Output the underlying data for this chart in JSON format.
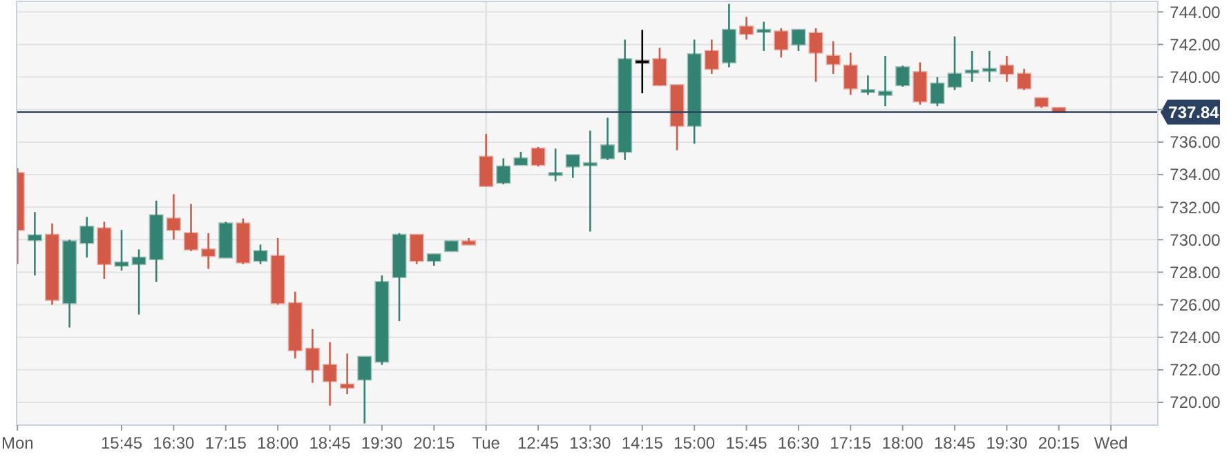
{
  "chart_data": {
    "type": "candlestick",
    "categories": [
      "Mon",
      null,
      null,
      null,
      null,
      null,
      "15:45",
      null,
      null,
      "16:30",
      null,
      null,
      "17:15",
      null,
      null,
      "18:00",
      null,
      null,
      "18:45",
      null,
      null,
      "19:30",
      null,
      null,
      "20:15",
      null,
      null,
      "Tue",
      null,
      null,
      "12:45",
      null,
      null,
      "13:30",
      null,
      null,
      "14:15",
      null,
      null,
      "15:00",
      null,
      null,
      "15:45",
      null,
      null,
      "16:30",
      null,
      null,
      "17:15",
      null,
      null,
      "18:00",
      null,
      null,
      "18:45",
      null,
      null,
      "19:30",
      null,
      null,
      "20:15",
      null,
      null,
      "Wed"
    ],
    "ohlc": [
      [
        734.1,
        734.4,
        728.5,
        730.6
      ],
      [
        729.97,
        731.7,
        727.8,
        730.27
      ],
      [
        730.3,
        731.0,
        726.0,
        726.3
      ],
      [
        726.1,
        730.0,
        724.6,
        729.9
      ],
      [
        729.8,
        731.4,
        728.9,
        730.8
      ],
      [
        730.7,
        731.1,
        727.6,
        728.5
      ],
      [
        728.4,
        730.6,
        728.1,
        728.6
      ],
      [
        728.5,
        729.4,
        725.4,
        728.9
      ],
      [
        728.8,
        732.4,
        727.4,
        731.5
      ],
      [
        731.3,
        732.8,
        730.0,
        730.6
      ],
      [
        730.4,
        732.2,
        729.3,
        729.4
      ],
      [
        729.4,
        730.4,
        728.2,
        729.0
      ],
      [
        728.9,
        731.1,
        728.9,
        731.0
      ],
      [
        731.0,
        731.3,
        728.5,
        728.6
      ],
      [
        728.7,
        729.7,
        728.5,
        729.3
      ],
      [
        729.0,
        730.1,
        726.0,
        726.1
      ],
      [
        726.1,
        726.8,
        722.7,
        723.2
      ],
      [
        723.3,
        724.5,
        721.2,
        722.0
      ],
      [
        722.3,
        723.7,
        719.8,
        721.3
      ],
      [
        721.1,
        723.0,
        720.5,
        720.9
      ],
      [
        721.4,
        722.8,
        718.7,
        722.8
      ],
      [
        722.5,
        727.8,
        722.3,
        727.4
      ],
      [
        727.7,
        730.4,
        725.0,
        730.3
      ],
      [
        730.3,
        730.3,
        728.5,
        728.7
      ],
      [
        728.7,
        729.1,
        728.4,
        729.1
      ],
      [
        729.3,
        729.9,
        729.3,
        729.9
      ],
      [
        729.9,
        730.1,
        729.7,
        729.7
      ],
      [
        735.1,
        736.5,
        733.3,
        733.3
      ],
      [
        733.5,
        735.0,
        733.4,
        734.5
      ],
      [
        734.6,
        735.4,
        734.6,
        735.0
      ],
      [
        735.6,
        735.7,
        734.5,
        734.6
      ],
      [
        734.0,
        735.6,
        733.6,
        734.1
      ],
      [
        734.5,
        735.2,
        733.8,
        735.2
      ],
      [
        734.6,
        736.7,
        730.5,
        734.7
      ],
      [
        735.0,
        737.5,
        734.9,
        735.8
      ],
      [
        735.4,
        742.3,
        734.9,
        741.1
      ],
      [
        741.0,
        742.9,
        739.0,
        741.0
      ],
      [
        741.1,
        741.8,
        739.5,
        739.5
      ],
      [
        739.5,
        739.5,
        735.5,
        737.0
      ],
      [
        737.0,
        742.3,
        735.9,
        741.4
      ],
      [
        741.6,
        742.3,
        740.2,
        740.5
      ],
      [
        740.9,
        744.5,
        740.6,
        742.9
      ],
      [
        743.1,
        743.7,
        742.3,
        742.65
      ],
      [
        742.8,
        743.4,
        741.6,
        742.9
      ],
      [
        742.8,
        743.0,
        741.2,
        741.7
      ],
      [
        742.0,
        742.9,
        741.6,
        742.9
      ],
      [
        742.7,
        743.0,
        739.7,
        741.5
      ],
      [
        741.3,
        742.2,
        740.2,
        740.8
      ],
      [
        740.7,
        741.5,
        738.9,
        739.3
      ],
      [
        739.1,
        740.1,
        738.9,
        739.2
      ],
      [
        738.9,
        741.3,
        738.2,
        739.1
      ],
      [
        739.5,
        740.7,
        739.4,
        740.6
      ],
      [
        740.3,
        740.9,
        738.3,
        738.5
      ],
      [
        738.4,
        740.0,
        738.2,
        739.6
      ],
      [
        739.4,
        742.5,
        739.2,
        740.2
      ],
      [
        740.3,
        741.6,
        739.7,
        740.4
      ],
      [
        740.4,
        741.6,
        739.7,
        740.5
      ],
      [
        740.7,
        741.3,
        739.7,
        740.2
      ],
      [
        740.2,
        740.5,
        739.2,
        739.3
      ],
      [
        738.7,
        738.7,
        738.1,
        738.2
      ],
      [
        738.1,
        738.1,
        737.84,
        737.84
      ],
      null,
      null,
      null
    ],
    "colors": [
      "#d45a48",
      "#338372",
      "#d45a48",
      "#338372",
      "#338372",
      "#d45a48",
      "#338372",
      "#338372",
      "#338372",
      "#d45a48",
      "#d45a48",
      "#d45a48",
      "#338372",
      "#d45a48",
      "#338372",
      "#d45a48",
      "#d45a48",
      "#d45a48",
      "#d45a48",
      "#d45a48",
      "#338372",
      "#338372",
      "#338372",
      "#d45a48",
      "#338372",
      "#338372",
      "#d45a48",
      "#d45a48",
      "#338372",
      "#338372",
      "#d45a48",
      "#338372",
      "#338372",
      "#338372",
      "#338372",
      "#338372",
      "#000000",
      "#d45a48",
      "#d45a48",
      "#338372",
      "#d45a48",
      "#338372",
      "#d45a48",
      "#338372",
      "#d45a48",
      "#338372",
      "#d45a48",
      "#d45a48",
      "#d45a48",
      "#338372",
      "#338372",
      "#338372",
      "#d45a48",
      "#338372",
      "#338372",
      "#338372",
      "#338372",
      "#d45a48",
      "#d45a48",
      "#d45a48",
      "#d45a48",
      null,
      null,
      null
    ],
    "ylim": [
      718.6,
      744.65
    ],
    "yticks": [
      {
        "value": 720,
        "label": "720.00"
      },
      {
        "value": 722,
        "label": "722.00"
      },
      {
        "value": 724,
        "label": "724.00"
      },
      {
        "value": 726,
        "label": "726.00"
      },
      {
        "value": 728,
        "label": "728.00"
      },
      {
        "value": 730,
        "label": "730.00"
      },
      {
        "value": 732,
        "label": "732.00"
      },
      {
        "value": 734,
        "label": "734.00"
      },
      {
        "value": 736,
        "label": "736.00"
      },
      {
        "value": 738,
        "label": null
      },
      {
        "value": 740,
        "label": "740.00"
      },
      {
        "value": 742,
        "label": "742.00"
      },
      {
        "value": 744,
        "label": "744.00"
      }
    ],
    "grid": "y",
    "ref_lines": [
      {
        "axis": "y",
        "value": 737.84,
        "label": "737.84",
        "color": "#2b4162"
      },
      {
        "axis": "x",
        "value": "Tue",
        "color": "#e2e2e2"
      },
      {
        "axis": "x",
        "value": "Wed",
        "color": "#e2e2e2"
      }
    ]
  }
}
